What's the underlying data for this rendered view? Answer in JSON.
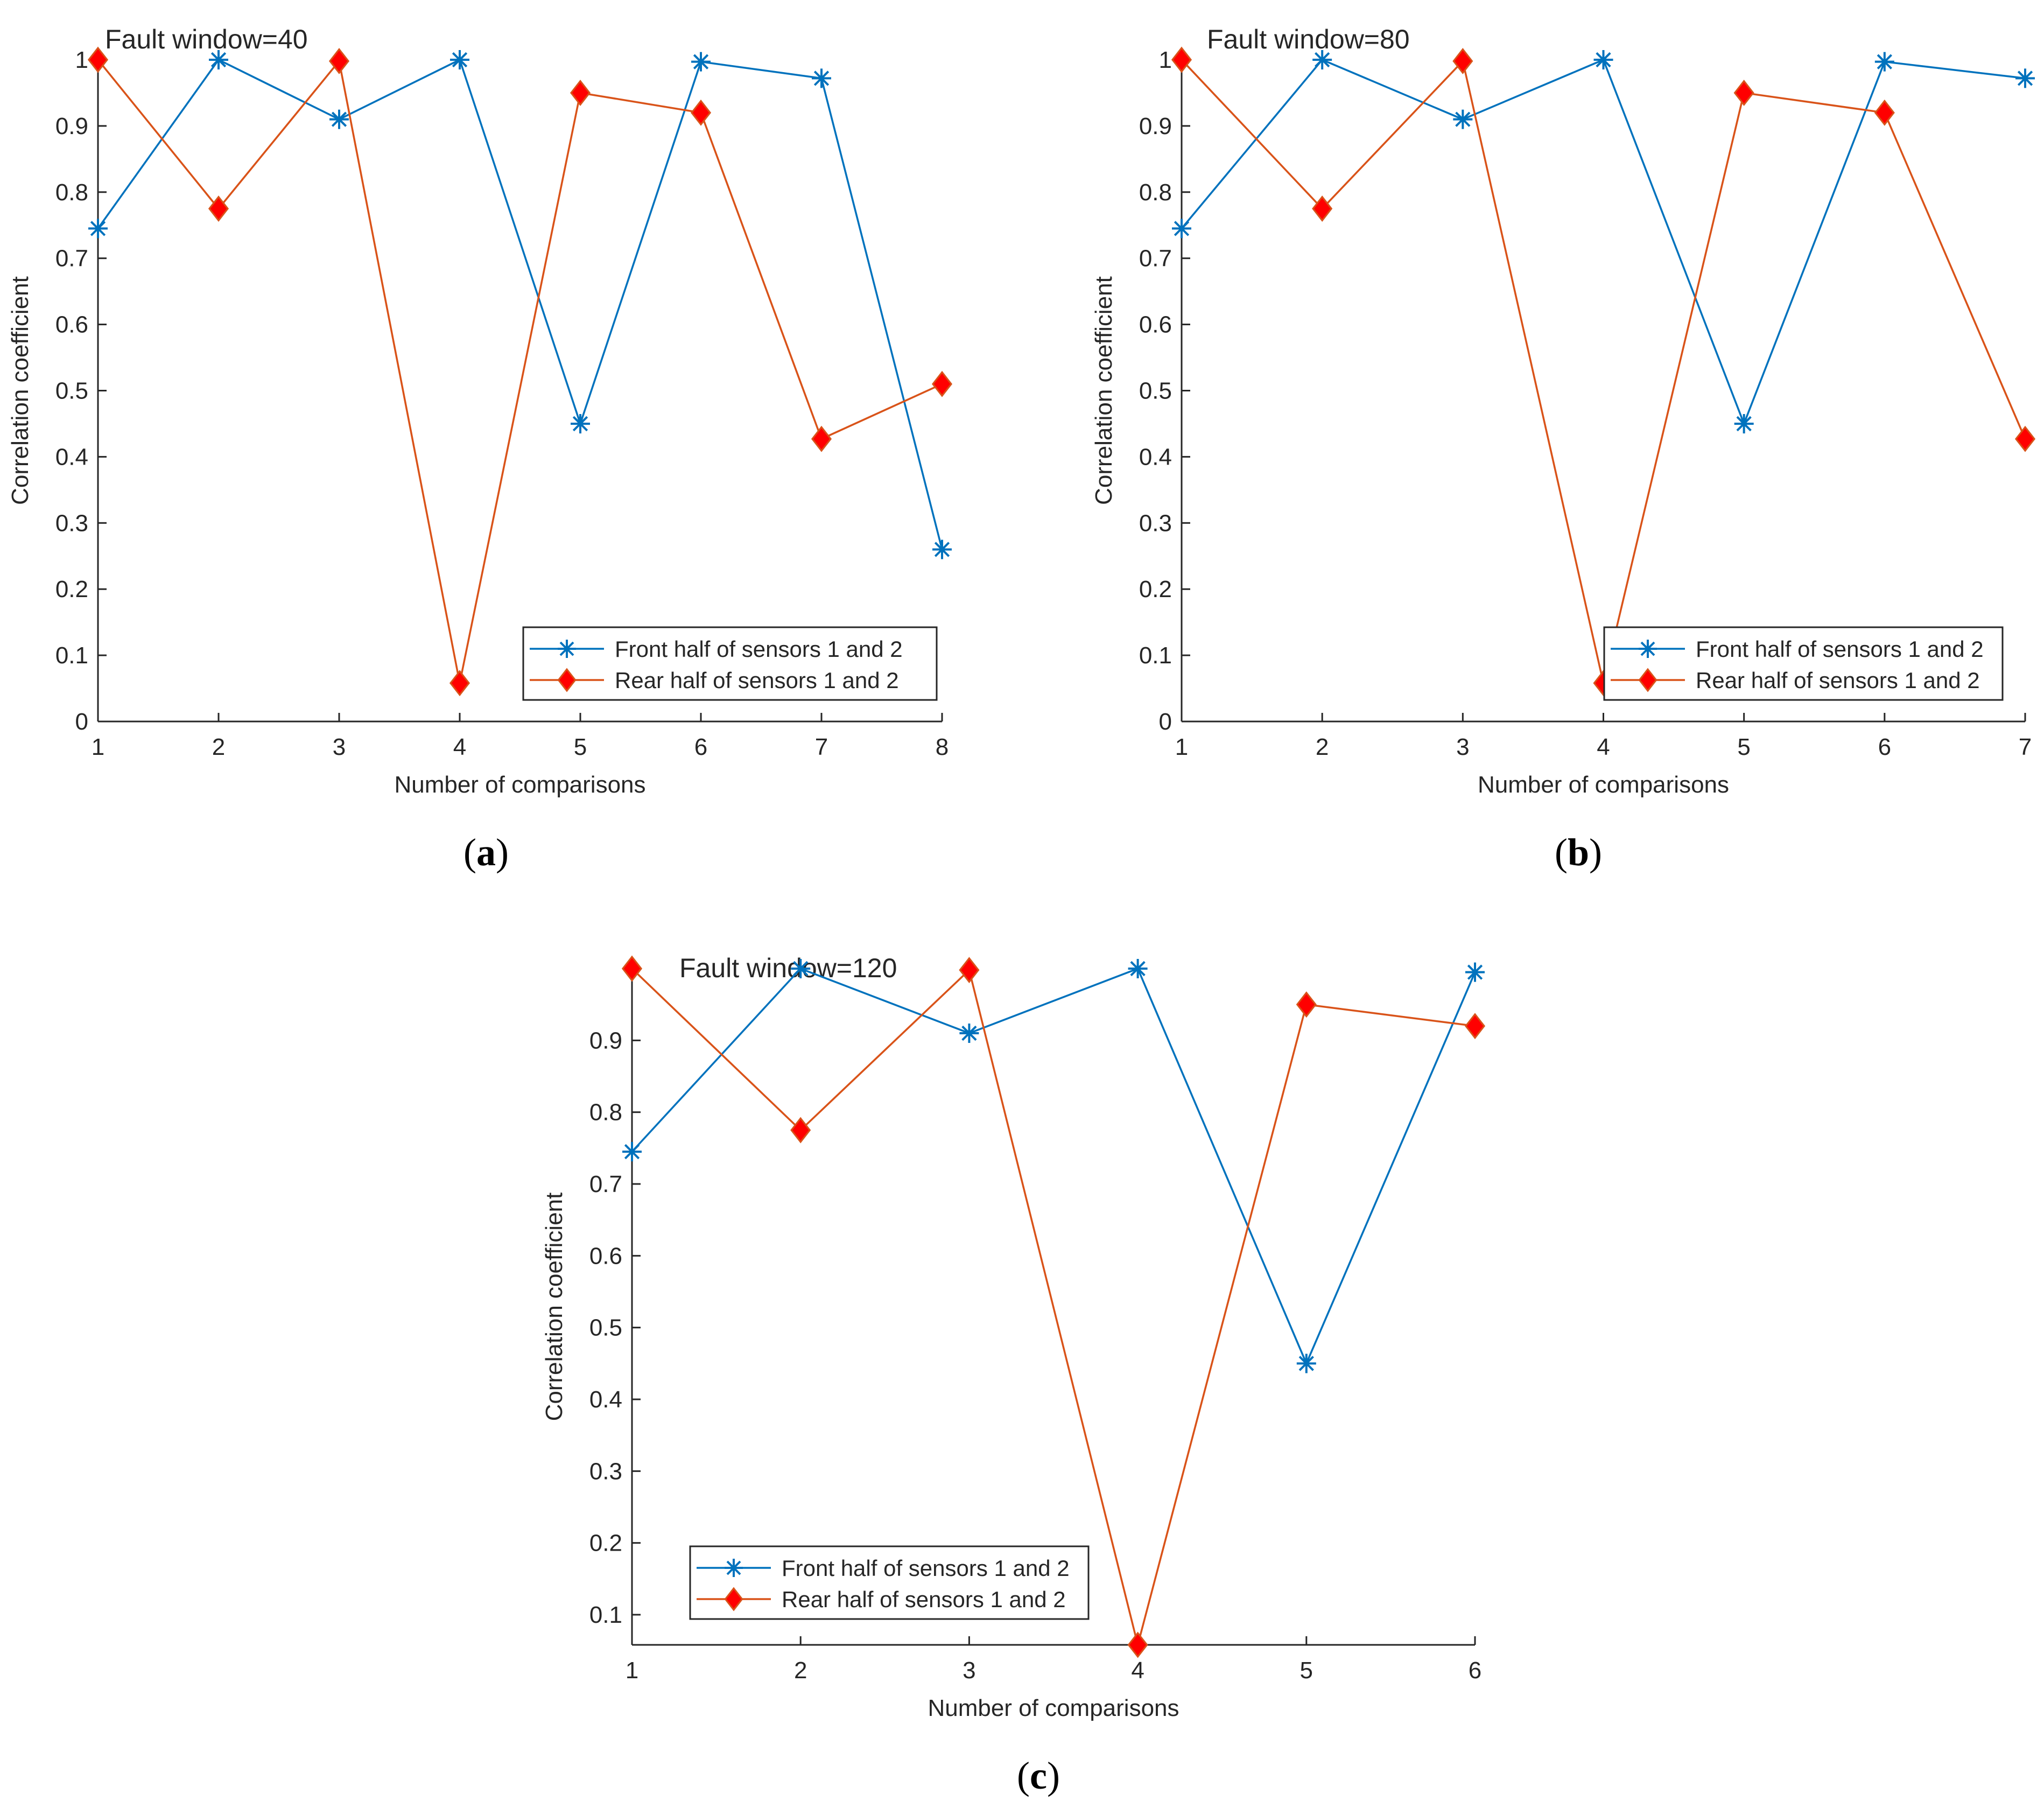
{
  "figure": {
    "captions": [
      {
        "open": "(",
        "letter": "a",
        "close": ")"
      },
      {
        "open": "(",
        "letter": "b",
        "close": ")"
      },
      {
        "open": "(",
        "letter": "c",
        "close": ")"
      }
    ],
    "colors": {
      "front_series": "#0072BD",
      "rear_series": "#D95319",
      "rear_marker_fill": "#FF0000",
      "axis": "#262626",
      "legend_border": "#262626"
    }
  },
  "chart_data": [
    {
      "type": "line",
      "title": "Fault window=40",
      "xlabel": "Number of comparisons",
      "ylabel": "Correlation coefficient",
      "xlim": [
        1,
        8
      ],
      "ylim": [
        0,
        1
      ],
      "xticks": [
        1,
        2,
        3,
        4,
        5,
        6,
        7,
        8
      ],
      "yticks": [
        0,
        0.1,
        0.2,
        0.3,
        0.4,
        0.5,
        0.6,
        0.7,
        0.8,
        0.9,
        1
      ],
      "ytick_labels": [
        "0",
        "0.1",
        "0.2",
        "0.3",
        "0.4",
        "0.5",
        "0.6",
        "0.7",
        "0.8",
        "0.9",
        "1"
      ],
      "grid": false,
      "legend_position": "bottom-right",
      "x": [
        1,
        2,
        3,
        4,
        5,
        6,
        7,
        8
      ],
      "series": [
        {
          "name": "Front half of sensors 1 and 2",
          "marker": "asterisk",
          "values": [
            0.745,
            1.0,
            0.91,
            1.0,
            0.45,
            0.997,
            0.972,
            0.26
          ]
        },
        {
          "name": "Rear half of sensors 1 and 2",
          "marker": "diamond",
          "values": [
            1.0,
            0.775,
            0.998,
            0.058,
            0.95,
            0.92,
            0.427,
            0.51
          ]
        }
      ]
    },
    {
      "type": "line",
      "title": "Fault window=80",
      "xlabel": "Number of comparisons",
      "ylabel": "Correlation coefficient",
      "xlim": [
        1,
        7
      ],
      "ylim": [
        0,
        1
      ],
      "xticks": [
        1,
        2,
        3,
        4,
        5,
        6,
        7
      ],
      "yticks": [
        0,
        0.1,
        0.2,
        0.3,
        0.4,
        0.5,
        0.6,
        0.7,
        0.8,
        0.9,
        1
      ],
      "ytick_labels": [
        "0",
        "0.1",
        "0.2",
        "0.3",
        "0.4",
        "0.5",
        "0.6",
        "0.7",
        "0.8",
        "0.9",
        "1"
      ],
      "grid": false,
      "legend_position": "bottom-right",
      "x": [
        1,
        2,
        3,
        4,
        5,
        6,
        7
      ],
      "series": [
        {
          "name": "Front half of sensors 1 and 2",
          "marker": "asterisk",
          "values": [
            0.745,
            1.0,
            0.91,
            1.0,
            0.45,
            0.997,
            0.972
          ]
        },
        {
          "name": "Rear half of sensors 1 and 2",
          "marker": "diamond",
          "values": [
            1.0,
            0.775,
            0.998,
            0.058,
            0.95,
            0.92,
            0.427
          ]
        }
      ]
    },
    {
      "type": "line",
      "title": "Fault window=120",
      "xlabel": "Number of comparisons",
      "ylabel": "Correlation coefficient",
      "xlim": [
        1,
        6
      ],
      "ylim": [
        0.058,
        1.0
      ],
      "xticks": [
        1,
        2,
        3,
        4,
        5,
        6
      ],
      "yticks": [
        0.1,
        0.2,
        0.3,
        0.4,
        0.5,
        0.6,
        0.7,
        0.8,
        0.9
      ],
      "ytick_labels": [
        "0.1",
        "0.2",
        "0.3",
        "0.4",
        "0.5",
        "0.6",
        "0.7",
        "0.8",
        "0.9"
      ],
      "grid": false,
      "legend_position": "bottom-left",
      "x": [
        1,
        2,
        3,
        4,
        5,
        6
      ],
      "series": [
        {
          "name": "Front half of sensors 1 and 2",
          "marker": "asterisk",
          "values": [
            0.745,
            1.0,
            0.91,
            1.0,
            0.45,
            0.995
          ]
        },
        {
          "name": "Rear half of sensors 1 and 2",
          "marker": "diamond",
          "values": [
            1.0,
            0.775,
            0.998,
            0.058,
            0.95,
            0.92
          ]
        }
      ]
    }
  ]
}
